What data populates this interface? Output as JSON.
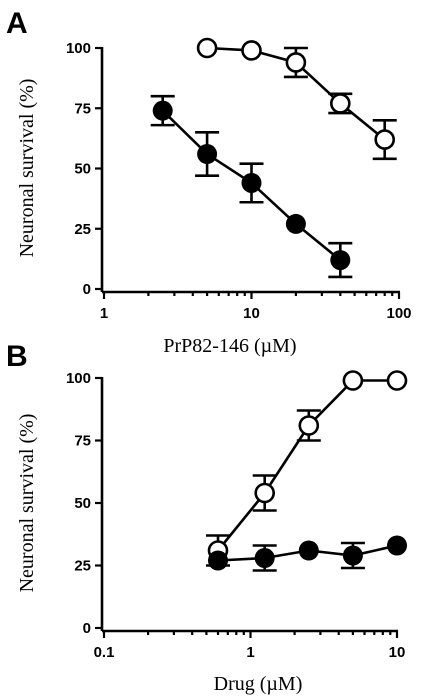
{
  "chart_data": [
    {
      "type": "scatter",
      "panel_label": "A",
      "xlabel": "PrP82-146 (µM)",
      "ylabel": "Neuronal survival (%)",
      "xscale": "log",
      "xlim": [
        1,
        100
      ],
      "ylim": [
        0,
        100
      ],
      "x_ticks": [
        1,
        10,
        100
      ],
      "x_tick_labels": [
        "1",
        "10",
        "100"
      ],
      "y_ticks": [
        0,
        25,
        50,
        75,
        100
      ],
      "y_tick_labels": [
        "0",
        "25",
        "50",
        "75",
        "100"
      ],
      "series": [
        {
          "marker": "open-circle",
          "points": [
            {
              "x": 5,
              "y": 100,
              "err": 0
            },
            {
              "x": 10,
              "y": 99,
              "err": 0
            },
            {
              "x": 20,
              "y": 94,
              "err": 6
            },
            {
              "x": 40,
              "y": 77,
              "err": 4
            },
            {
              "x": 80,
              "y": 62,
              "err": 8
            }
          ]
        },
        {
          "marker": "filled-circle",
          "points": [
            {
              "x": 2.5,
              "y": 74,
              "err": 6
            },
            {
              "x": 5,
              "y": 56,
              "err": 9
            },
            {
              "x": 10,
              "y": 44,
              "err": 8
            },
            {
              "x": 20,
              "y": 27,
              "err": 0
            },
            {
              "x": 40,
              "y": 12,
              "err": 7
            }
          ]
        }
      ]
    },
    {
      "type": "scatter",
      "panel_label": "B",
      "xlabel": "Drug (µM)",
      "ylabel": "Neuronal survival (%)",
      "xscale": "log",
      "xlim": [
        0.1,
        10
      ],
      "ylim": [
        0,
        100
      ],
      "x_ticks": [
        0.1,
        1,
        10
      ],
      "x_tick_labels": [
        "0.1",
        "1",
        "10"
      ],
      "y_ticks": [
        0,
        25,
        50,
        75,
        100
      ],
      "y_tick_labels": [
        "0",
        "25",
        "50",
        "75",
        "100"
      ],
      "series": [
        {
          "marker": "open-circle",
          "points": [
            {
              "x": 0.6,
              "y": 31,
              "err": 6
            },
            {
              "x": 1.25,
              "y": 54,
              "err": 7
            },
            {
              "x": 2.5,
              "y": 81,
              "err": 6
            },
            {
              "x": 5,
              "y": 99,
              "err": 0
            },
            {
              "x": 10,
              "y": 99,
              "err": 0
            }
          ]
        },
        {
          "marker": "filled-circle",
          "points": [
            {
              "x": 0.6,
              "y": 27,
              "err": 0
            },
            {
              "x": 1.25,
              "y": 28,
              "err": 5
            },
            {
              "x": 2.5,
              "y": 31,
              "err": 0
            },
            {
              "x": 5,
              "y": 29,
              "err": 5
            },
            {
              "x": 10,
              "y": 33,
              "err": 0
            }
          ]
        }
      ]
    }
  ]
}
